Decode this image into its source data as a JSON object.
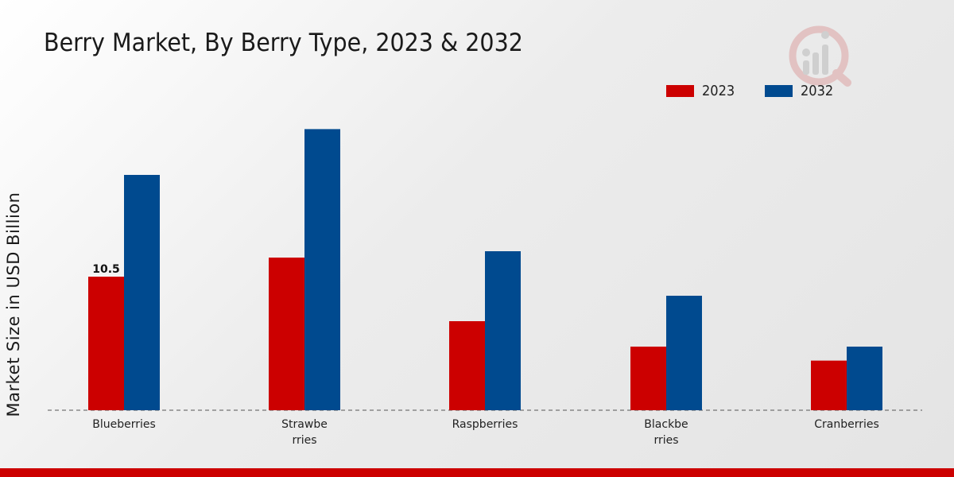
{
  "chart_data": {
    "type": "bar",
    "title": "Berry Market, By Berry Type, 2023 & 2032",
    "xlabel": "",
    "ylabel": "Market Size in USD Billion",
    "categories": [
      [
        "Blueberries"
      ],
      [
        "Strawbe",
        "rries"
      ],
      [
        "Raspberries"
      ],
      [
        "Blackbe",
        "rries"
      ],
      [
        "Cranberries"
      ]
    ],
    "series": [
      {
        "name": "2023",
        "color": "#cc0000",
        "values": [
          10.5,
          12.0,
          7.0,
          5.0,
          3.9
        ]
      },
      {
        "name": "2032",
        "color": "#004a8f",
        "values": [
          18.5,
          22.1,
          12.5,
          9.0,
          5.0
        ]
      }
    ],
    "data_labels": [
      {
        "series": 0,
        "index": 0,
        "text": "10.5"
      }
    ],
    "ylim": [
      0,
      25
    ],
    "grid": false,
    "legend_position": "top-right"
  }
}
